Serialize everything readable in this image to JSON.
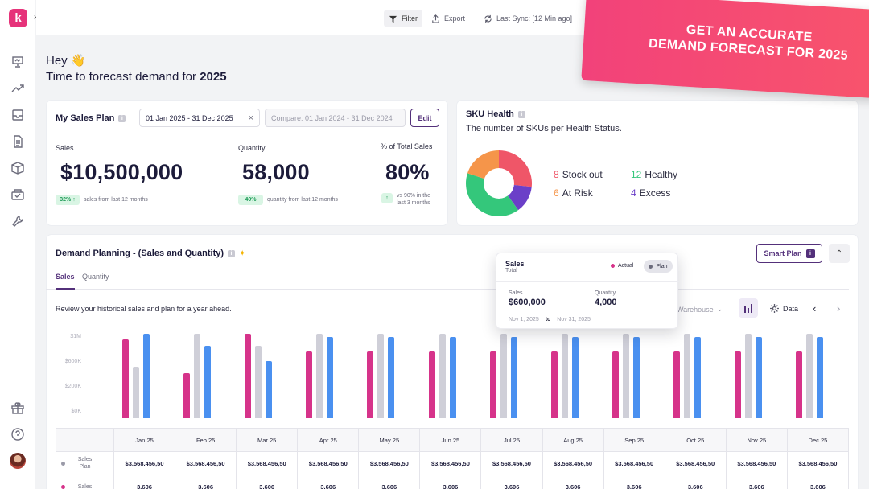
{
  "app": {
    "logo_letter": "k"
  },
  "topbar": {
    "filter_label": "Filter",
    "export_label": "Export",
    "sync_label": "Last Sync: [12 Min ago]"
  },
  "promo": {
    "line1": "GET AN ACCURATE",
    "line2": "DEMAND FORECAST FOR 2025"
  },
  "greeting": {
    "hey": "Hey",
    "emoji": "👋",
    "subtitle_prefix": "Time to forecast demand for",
    "year": "2025"
  },
  "sales_plan": {
    "title": "My Sales Plan",
    "date_range": "01 Jan 2025 - 31 Dec 2025",
    "compare_range": "Compare: 01 Jan 2024 - 31 Dec 2024",
    "edit_label": "Edit",
    "sales": {
      "label": "Sales",
      "value": "$10,500,000",
      "chip": "32%",
      "note": "sales from last 12 months"
    },
    "quantity": {
      "label": "Quantity",
      "value": "58,000",
      "chip": "40%",
      "note": "quantity from last 12 months"
    },
    "pct_total": {
      "label": "% of Total Sales",
      "value": "80%",
      "note_line1": "vs 90% in the",
      "note_line2": "last 3 months"
    }
  },
  "sku_health": {
    "title": "SKU Health",
    "subtitle": "The number of SKUs per Health Status.",
    "segments": [
      {
        "label": "Stock out",
        "count": "8",
        "color": "#ef5668"
      },
      {
        "label": "Healthy",
        "count": "12",
        "color": "#34c77b"
      },
      {
        "label": "At Risk",
        "count": "6",
        "color": "#f5954a"
      },
      {
        "label": "Excess",
        "count": "4",
        "color": "#6b3fc8"
      }
    ]
  },
  "demand": {
    "title": "Demand Planning - (Sales and Quantity)",
    "smart_plan_label": "Smart Plan",
    "tabs": [
      "Sales",
      "Quantity"
    ],
    "review_text": "Review your historical sales and plan for a year ahead.",
    "warehouse_label": "Warehouse",
    "data_label": "Data",
    "tooltip": {
      "title": "Sales",
      "subtitle": "Total",
      "legend_actual": "Actual",
      "legend_plan": "Plan",
      "sales_label": "Sales",
      "sales_value": "$600,000",
      "qty_label": "Quantity",
      "qty_value": "4,000",
      "from": "Nov 1, 2025",
      "to_word": "to",
      "to": "Nov 31, 2025"
    }
  },
  "chart_data": {
    "type": "bar",
    "categories": [
      "Jan 25",
      "Feb 25",
      "Mar 25",
      "Apr 25",
      "May 25",
      "Jun 25",
      "Jul 25",
      "Aug 25",
      "Sep 25",
      "Oct 25",
      "Nov 25",
      "Dec 25"
    ],
    "yticks": [
      "$1M",
      "$600K",
      "$200K",
      "$0K"
    ],
    "colors": {
      "actual": "#d6338a",
      "plan": "#cfcfd8",
      "forecast": "#4a90f0"
    },
    "series": [
      {
        "values": [
          0.92,
          0.52,
          0.98,
          0.78,
          0.78,
          0.78,
          0.78,
          0.78,
          0.78,
          0.78,
          0.78,
          0.78
        ]
      },
      {
        "values": [
          0.6,
          0.98,
          0.84,
          0.98,
          0.98,
          0.98,
          0.98,
          0.98,
          0.98,
          0.98,
          0.98,
          0.98
        ]
      },
      {
        "values": [
          0.98,
          0.84,
          0.66,
          0.94,
          0.94,
          0.94,
          0.94,
          0.94,
          0.94,
          0.94,
          0.94,
          0.94
        ]
      }
    ]
  },
  "table": {
    "rows": [
      {
        "label1": "Sales",
        "label2": "Plan",
        "dot": "#9a9aa8",
        "values": [
          "$3.568.456,50",
          "$3.568.456,50",
          "$3.568.456,50",
          "$3.568.456,50",
          "$3.568.456,50",
          "$3.568.456,50",
          "$3.568.456,50",
          "$3.568.456,50",
          "$3.568.456,50",
          "$3.568.456,50",
          "$3.568.456,50",
          "$3.568.456,50"
        ]
      },
      {
        "label1": "Sales",
        "label2": "",
        "dot": "#d6338a",
        "values": [
          "3.606",
          "3.606",
          "3.606",
          "3.606",
          "3.606",
          "3.606",
          "3.606",
          "3.606",
          "3.606",
          "3.606",
          "3.606",
          "3.606"
        ]
      }
    ]
  }
}
